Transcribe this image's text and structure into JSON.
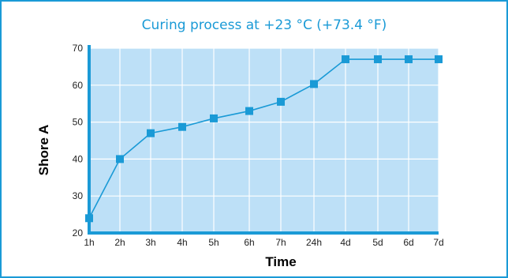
{
  "chart_data": {
    "type": "line",
    "title": "Curing process at +23 °C (+73.4 °F)",
    "xlabel": "Time",
    "ylabel": "Shore A",
    "categories": [
      "1h",
      "2h",
      "3h",
      "4h",
      "5h",
      "6h",
      "7h",
      "24h",
      "4d",
      "5d",
      "6d",
      "7d"
    ],
    "series": [
      {
        "values": [
          24,
          40,
          47,
          48.7,
          51,
          53,
          55.5,
          60.3,
          67,
          67,
          67,
          67
        ]
      }
    ],
    "ylim": [
      20,
      70
    ],
    "yticks": [
      20,
      30,
      40,
      50,
      60,
      70
    ],
    "grid": true,
    "colors": {
      "plot_bg": "#bde0f7",
      "grid": "#ffffff",
      "series": "#1a9ad6",
      "axis": "#1a9ad6",
      "title": "#1a9ad6",
      "frame": "#1a9ad6"
    }
  }
}
